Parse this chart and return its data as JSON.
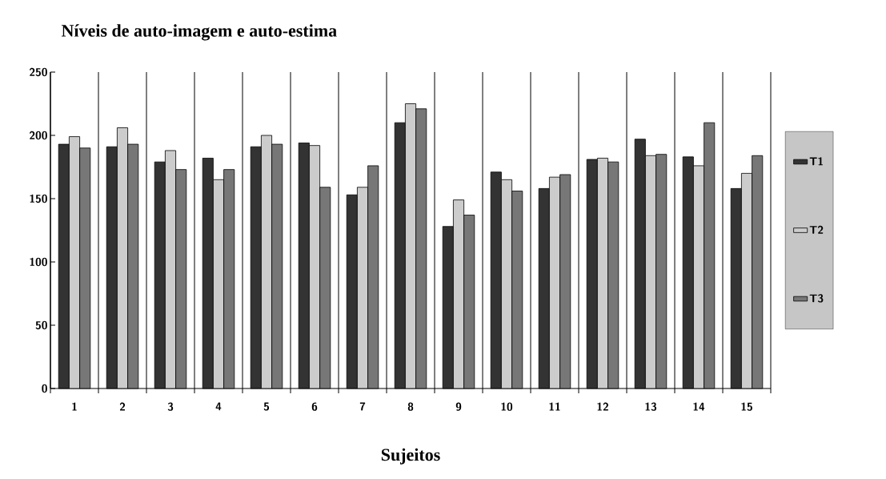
{
  "chart_data": {
    "type": "bar",
    "title": "Níveis de auto-imagem e auto-estima",
    "xlabel": "Sujeitos",
    "categories": [
      "1",
      "2",
      "3",
      "4",
      "5",
      "6",
      "7",
      "8",
      "9",
      "10",
      "11",
      "12",
      "13",
      "14",
      "15"
    ],
    "series": [
      {
        "name": "T1",
        "color": "#333333",
        "values": [
          193,
          191,
          179,
          182,
          191,
          194,
          153,
          210,
          128,
          171,
          158,
          181,
          197,
          183,
          158
        ]
      },
      {
        "name": "T2",
        "color": "#cccccc",
        "values": [
          199,
          206,
          188,
          165,
          200,
          192,
          159,
          225,
          149,
          165,
          167,
          182,
          184,
          176,
          170
        ]
      },
      {
        "name": "T3",
        "color": "#777777",
        "values": [
          190,
          193,
          173,
          173,
          193,
          159,
          176,
          221,
          137,
          156,
          169,
          179,
          185,
          210,
          184
        ]
      }
    ],
    "ylim": [
      0,
      250
    ],
    "yticks": [
      0,
      50,
      100,
      150,
      200,
      250
    ],
    "grid": "x",
    "legend": "right"
  }
}
